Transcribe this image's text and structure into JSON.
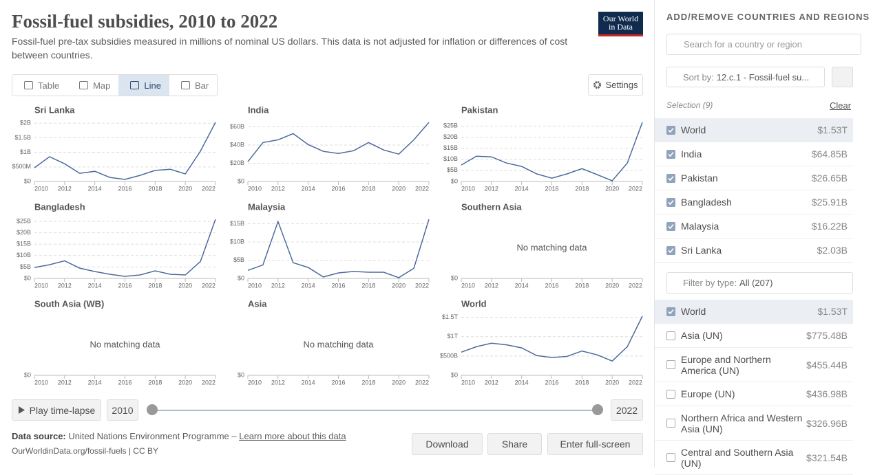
{
  "header": {
    "title": "Fossil-fuel subsidies, 2010 to 2022",
    "subtitle": "Fossil-fuel pre-tax subsidies measured in millions of nominal US dollars. This data is not adjusted for inflation or differences of cost between countries.",
    "logo": [
      "Our World",
      "in Data"
    ]
  },
  "tabs": [
    {
      "label": "Table",
      "selected": false
    },
    {
      "label": "Map",
      "selected": false
    },
    {
      "label": "Line",
      "selected": true
    },
    {
      "label": "Bar",
      "selected": false
    }
  ],
  "settings": "Settings",
  "chart_data": [
    {
      "type": "line",
      "title": "Sri Lanka",
      "color": "#4c6a9c",
      "x": [
        2010,
        2011,
        2012,
        2013,
        2014,
        2015,
        2016,
        2017,
        2018,
        2019,
        2020,
        2021,
        2022
      ],
      "values": [
        470000000,
        850000000,
        610000000,
        280000000,
        350000000,
        140000000,
        70000000,
        210000000,
        380000000,
        420000000,
        260000000,
        1040000000,
        2030000000
      ],
      "xlim": [
        2010,
        2022
      ],
      "xticks": [
        2010,
        2012,
        2014,
        2016,
        2018,
        2020,
        2022
      ],
      "ylim": [
        0,
        2030000000
      ],
      "yticks": [
        {
          "value": 0,
          "label": "$0"
        },
        {
          "value": 500000000,
          "label": "$500M"
        },
        {
          "value": 1000000000,
          "label": "$1B"
        },
        {
          "value": 1500000000,
          "label": "$1.5B"
        },
        {
          "value": 2000000000,
          "label": "$2B"
        }
      ]
    },
    {
      "type": "line",
      "title": "India",
      "color": "#4c6a9c",
      "x": [
        2010,
        2011,
        2012,
        2013,
        2014,
        2015,
        2016,
        2017,
        2018,
        2019,
        2020,
        2021,
        2022
      ],
      "values": [
        21700000000,
        42700000000,
        45700000000,
        52500000000,
        40500000000,
        33000000000,
        30700000000,
        33700000000,
        42700000000,
        34500000000,
        30000000000,
        45700000000,
        64850000000
      ],
      "xlim": [
        2010,
        2022
      ],
      "xticks": [
        2010,
        2012,
        2014,
        2016,
        2018,
        2020,
        2022
      ],
      "ylim": [
        0,
        64850000000
      ],
      "yticks": [
        {
          "value": 0,
          "label": "$0"
        },
        {
          "value": 20000000000,
          "label": "$20B"
        },
        {
          "value": 40000000000,
          "label": "$40B"
        },
        {
          "value": 60000000000,
          "label": "$60B"
        }
      ]
    },
    {
      "type": "line",
      "title": "Pakistan",
      "color": "#4c6a9c",
      "x": [
        2010,
        2011,
        2012,
        2013,
        2014,
        2015,
        2016,
        2017,
        2018,
        2019,
        2020,
        2021,
        2022
      ],
      "values": [
        7400000000,
        11400000000,
        11100000000,
        8300000000,
        6800000000,
        3400000000,
        1500000000,
        3400000000,
        5800000000,
        3100000000,
        300000000,
        8300000000,
        26650000000
      ],
      "xlim": [
        2010,
        2022
      ],
      "xticks": [
        2010,
        2012,
        2014,
        2016,
        2018,
        2020,
        2022
      ],
      "ylim": [
        0,
        26650000000
      ],
      "yticks": [
        {
          "value": 0,
          "label": "$0"
        },
        {
          "value": 5000000000,
          "label": "$5B"
        },
        {
          "value": 10000000000,
          "label": "$10B"
        },
        {
          "value": 15000000000,
          "label": "$15B"
        },
        {
          "value": 20000000000,
          "label": "$20B"
        },
        {
          "value": 25000000000,
          "label": "$25B"
        }
      ]
    },
    {
      "type": "line",
      "title": "Bangladesh",
      "color": "#4c6a9c",
      "x": [
        2010,
        2011,
        2012,
        2013,
        2014,
        2015,
        2016,
        2017,
        2018,
        2019,
        2020,
        2021,
        2022
      ],
      "values": [
        4800000000,
        6000000000,
        7700000000,
        4500000000,
        3000000000,
        1800000000,
        900000000,
        1500000000,
        3300000000,
        1800000000,
        1500000000,
        7400000000,
        25910000000
      ],
      "xlim": [
        2010,
        2022
      ],
      "xticks": [
        2010,
        2012,
        2014,
        2016,
        2018,
        2020,
        2022
      ],
      "ylim": [
        0,
        25910000000
      ],
      "yticks": [
        {
          "value": 0,
          "label": "$0"
        },
        {
          "value": 5000000000,
          "label": "$5B"
        },
        {
          "value": 10000000000,
          "label": "$10B"
        },
        {
          "value": 15000000000,
          "label": "$15B"
        },
        {
          "value": 20000000000,
          "label": "$20B"
        },
        {
          "value": 25000000000,
          "label": "$25B"
        }
      ]
    },
    {
      "type": "line",
      "title": "Malaysia",
      "color": "#4c6a9c",
      "x": [
        2010,
        2011,
        2012,
        2013,
        2014,
        2015,
        2016,
        2017,
        2018,
        2019,
        2020,
        2021,
        2022
      ],
      "values": [
        2200000000,
        3700000000,
        15600000000,
        4300000000,
        3000000000,
        400000000,
        1500000000,
        1900000000,
        1700000000,
        1700000000,
        200000000,
        2800000000,
        16220000000
      ],
      "xlim": [
        2010,
        2022
      ],
      "xticks": [
        2010,
        2012,
        2014,
        2016,
        2018,
        2020,
        2022
      ],
      "ylim": [
        0,
        16220000000
      ],
      "yticks": [
        {
          "value": 0,
          "label": "$0"
        },
        {
          "value": 5000000000,
          "label": "$5B"
        },
        {
          "value": 10000000000,
          "label": "$10B"
        },
        {
          "value": 15000000000,
          "label": "$15B"
        }
      ]
    },
    {
      "type": "line",
      "title": "Southern Asia",
      "note": "No matching data",
      "xlim": [
        2010,
        2022
      ],
      "xticks": [
        2010,
        2012,
        2014,
        2016,
        2018,
        2020,
        2022
      ],
      "yticks": [
        {
          "value": 0,
          "label": "$0"
        }
      ]
    },
    {
      "type": "line",
      "title": "South Asia (WB)",
      "note": "No matching data",
      "xlim": [
        2010,
        2022
      ],
      "xticks": [
        2010,
        2012,
        2014,
        2016,
        2018,
        2020,
        2022
      ],
      "yticks": [
        {
          "value": 0,
          "label": "$0"
        }
      ]
    },
    {
      "type": "line",
      "title": "Asia",
      "note": "No matching data",
      "xlim": [
        2010,
        2022
      ],
      "xticks": [
        2010,
        2012,
        2014,
        2016,
        2018,
        2020,
        2022
      ],
      "yticks": [
        {
          "value": 0,
          "label": "$0"
        }
      ]
    },
    {
      "type": "line",
      "title": "World",
      "color": "#4c6a9c",
      "x": [
        2010,
        2011,
        2012,
        2013,
        2014,
        2015,
        2016,
        2017,
        2018,
        2019,
        2020,
        2021,
        2022
      ],
      "values": [
        600000000000,
        740000000000,
        830000000000,
        790000000000,
        710000000000,
        510000000000,
        460000000000,
        490000000000,
        630000000000,
        530000000000,
        370000000000,
        740000000000,
        1530000000000
      ],
      "xlim": [
        2010,
        2022
      ],
      "xticks": [
        2010,
        2012,
        2014,
        2016,
        2018,
        2020,
        2022
      ],
      "ylim": [
        0,
        1530000000000
      ],
      "yticks": [
        {
          "value": 0,
          "label": "$0"
        },
        {
          "value": 500000000000,
          "label": "$500B"
        },
        {
          "value": 1000000000000,
          "label": "$1T"
        },
        {
          "value": 1500000000000,
          "label": "$1.5T"
        }
      ]
    }
  ],
  "timeline": {
    "play": "Play time-lapse",
    "start": "2010",
    "end": "2022"
  },
  "footer": {
    "source_label": "Data source:",
    "source": "United Nations Environment Programme –",
    "link": "Learn more about this data",
    "url": "OurWorldinData.org/fossil-fuels | CC BY",
    "buttons": [
      "Download",
      "Share",
      "Enter full-screen"
    ]
  },
  "sidebar": {
    "heading": "ADD/REMOVE COUNTRIES AND REGIONS",
    "search": "Search for a country or region",
    "sort_label": "Sort by:",
    "sort_value": "12.c.1 - Fossil-fuel su...",
    "selection": "Selection (9)",
    "clear": "Clear",
    "selected": [
      {
        "name": "World",
        "value": "$1.53T",
        "checked": true
      },
      {
        "name": "India",
        "value": "$64.85B",
        "checked": true
      },
      {
        "name": "Pakistan",
        "value": "$26.65B",
        "checked": true
      },
      {
        "name": "Bangladesh",
        "value": "$25.91B",
        "checked": true
      },
      {
        "name": "Malaysia",
        "value": "$16.22B",
        "checked": true
      },
      {
        "name": "Sri Lanka",
        "value": "$2.03B",
        "checked": true
      }
    ],
    "filter_label": "Filter by type:",
    "filter_value": "All (207)",
    "entities": [
      {
        "name": "World",
        "value": "$1.53T",
        "checked": true
      },
      {
        "name": "Asia (UN)",
        "value": "$775.48B",
        "checked": false
      },
      {
        "name": "Europe and Northern America (UN)",
        "value": "$455.44B",
        "checked": false
      },
      {
        "name": "Europe (UN)",
        "value": "$436.98B",
        "checked": false
      },
      {
        "name": "Northern Africa and Western Asia (UN)",
        "value": "$326.96B",
        "checked": false
      },
      {
        "name": "Central and Southern Asia (UN)",
        "value": "$321.54B",
        "checked": false
      }
    ]
  }
}
